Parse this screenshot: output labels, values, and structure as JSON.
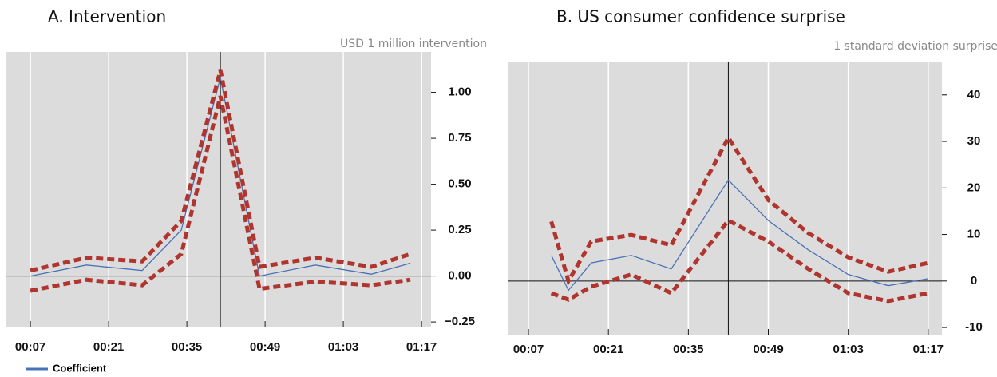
{
  "chart_data": [
    {
      "type": "line",
      "title": "A.   Intervention",
      "subtitle": "USD 1 million intervention",
      "x": [
        7,
        17,
        27,
        34,
        41,
        48,
        58,
        68,
        75
      ],
      "series": [
        {
          "name": "Coefficient",
          "color": "#4a72b8",
          "values": [
            0.0,
            0.06,
            0.03,
            0.25,
            1.08,
            0.0,
            0.06,
            0.01,
            0.07
          ]
        },
        {
          "color": "#b0352f",
          "dashed": true,
          "values": [
            0.03,
            0.1,
            0.08,
            0.3,
            1.12,
            0.05,
            0.1,
            0.05,
            0.12
          ]
        },
        {
          "color": "#b0352f",
          "dashed": true,
          "values": [
            -0.08,
            -0.02,
            -0.05,
            0.12,
            0.98,
            -0.07,
            -0.03,
            -0.05,
            -0.02
          ]
        }
      ],
      "xlim": [
        2.7,
        78.7
      ],
      "xticks": [
        {
          "value": 7,
          "label": "00:07"
        },
        {
          "value": 21,
          "label": "00:21"
        },
        {
          "value": 35,
          "label": "00:35"
        },
        {
          "value": 49,
          "label": "00:49"
        },
        {
          "value": 63,
          "label": "01:03"
        },
        {
          "value": 77,
          "label": "01:17"
        }
      ],
      "ylim": [
        -0.28,
        1.22
      ],
      "yticks": [
        {
          "value": 1,
          "label": "1.00"
        },
        {
          "value": 0.75,
          "label": "0.75"
        },
        {
          "value": 0.5,
          "label": "0.50"
        },
        {
          "value": 0.25,
          "label": "0.25"
        },
        {
          "value": 0,
          "label": "0.00"
        },
        {
          "value": -0.25,
          "label": "−0.25"
        }
      ],
      "vline": 41,
      "grid": true,
      "legend": "bottom-left"
    },
    {
      "type": "line",
      "title": "B.   US consumer confidence surprise",
      "subtitle": "1 standard deviation surprise",
      "x": [
        11,
        14,
        18,
        25,
        32,
        42,
        49,
        56,
        63,
        70,
        77
      ],
      "series": [
        {
          "name": "Coefficient",
          "color": "#4a72b8",
          "values": [
            5.5,
            -2,
            3.9,
            5.5,
            2.6,
            21.7,
            13,
            6.7,
            1.4,
            -1,
            0.5
          ]
        },
        {
          "color": "#b0352f",
          "dashed": true,
          "values": [
            12.8,
            0,
            8.5,
            9.9,
            7.7,
            30.8,
            17.4,
            10.3,
            5.1,
            2,
            3.9
          ]
        },
        {
          "color": "#b0352f",
          "dashed": true,
          "values": [
            -2.6,
            -4,
            -1.2,
            1.4,
            -2.6,
            13,
            8.5,
            2.6,
            -2.6,
            -4.3,
            -2.6
          ]
        }
      ],
      "xlim": [
        3.5,
        79.4
      ],
      "xticks": [
        {
          "value": 7,
          "label": "00:07"
        },
        {
          "value": 21,
          "label": "00:21"
        },
        {
          "value": 35,
          "label": "00:35"
        },
        {
          "value": 49,
          "label": "00:49"
        },
        {
          "value": 63,
          "label": "01:03"
        },
        {
          "value": 77,
          "label": "01:17"
        }
      ],
      "ylim": [
        -11.7,
        47
      ],
      "yticks": [
        40,
        30,
        20,
        10,
        0,
        -10
      ],
      "vline": 42,
      "grid": true
    }
  ]
}
